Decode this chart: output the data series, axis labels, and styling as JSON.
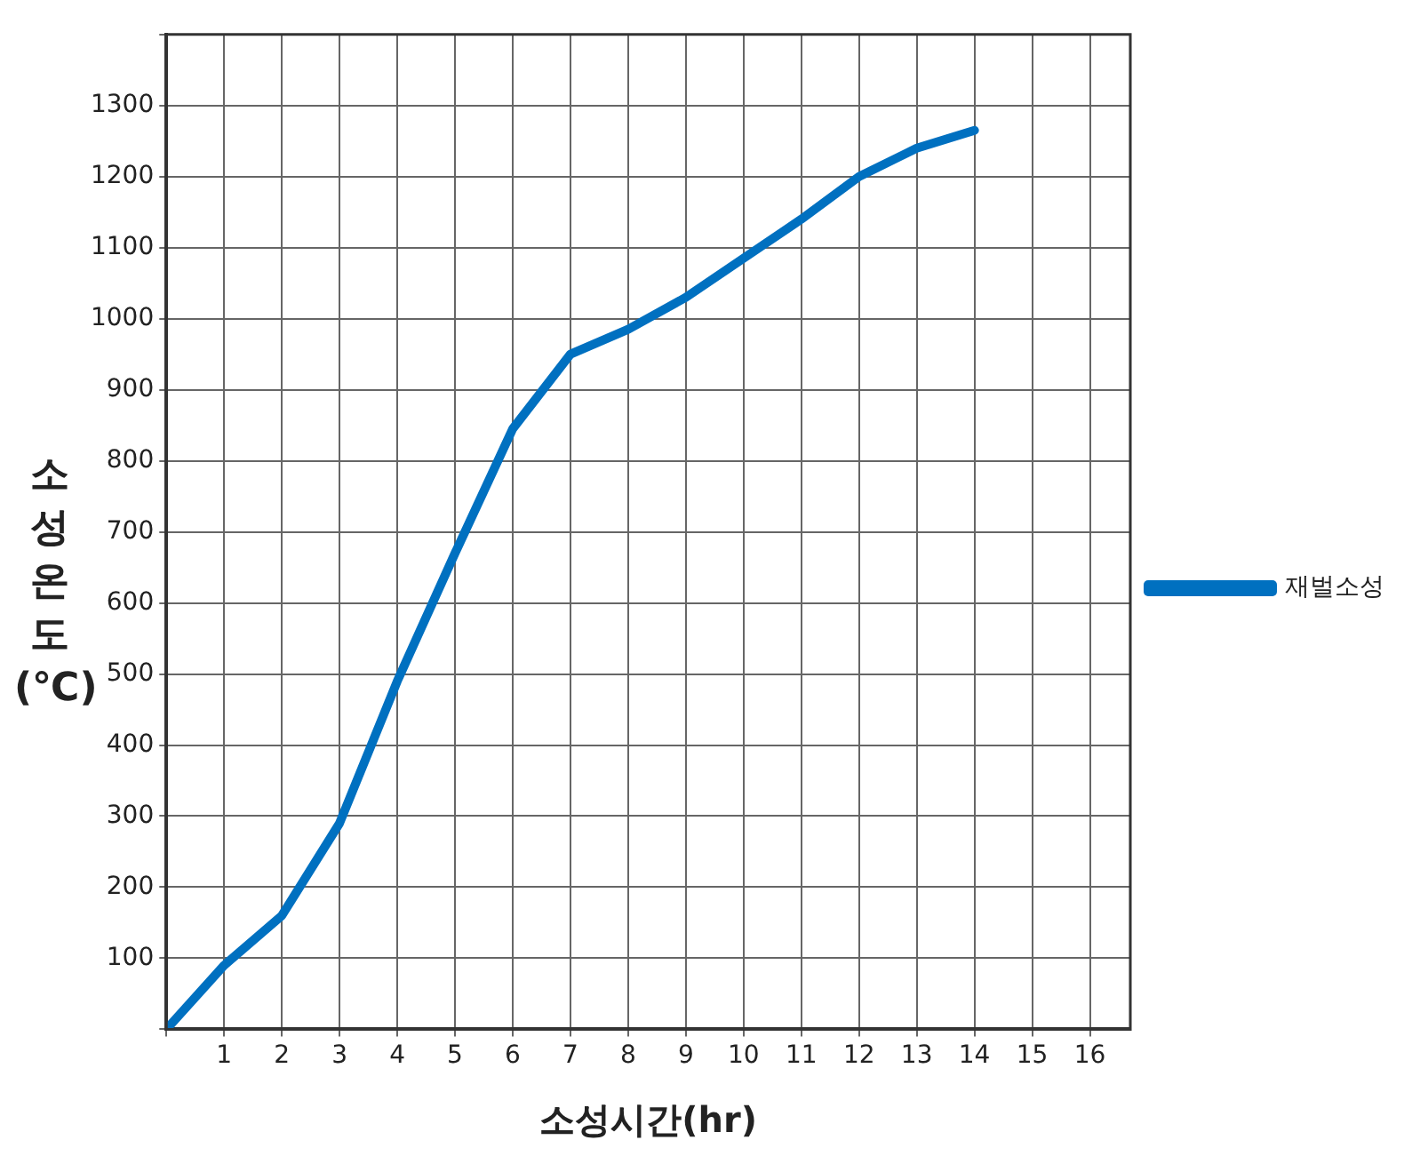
{
  "chart_data": {
    "type": "line",
    "xlabel": "소성시간(hr)",
    "ylabel": "소성온도 (℃)",
    "x": [
      0,
      1,
      2,
      3,
      4,
      5,
      6,
      7,
      8,
      9,
      10,
      11,
      12,
      13,
      14
    ],
    "series": [
      {
        "name": "재벌소성",
        "color": "#0070c0",
        "values": [
          0,
          90,
          160,
          290,
          490,
          670,
          845,
          950,
          985,
          1030,
          1085,
          1140,
          1200,
          1240,
          1265
        ]
      }
    ],
    "xlim": [
      0,
      16.7
    ],
    "xticks": [
      {
        "value": 0,
        "label": null
      },
      1,
      2,
      3,
      4,
      5,
      6,
      7,
      8,
      9,
      10,
      11,
      12,
      13,
      14,
      15,
      16
    ],
    "ylim": [
      0,
      1400
    ],
    "yticks": [
      {
        "value": 0,
        "label": null
      },
      100,
      200,
      300,
      400,
      500,
      600,
      700,
      800,
      900,
      1000,
      1100,
      1200,
      1300,
      {
        "value": 1400,
        "label": null
      }
    ],
    "grid": true,
    "legend": "right",
    "marker": "none",
    "line_style": "solid"
  }
}
